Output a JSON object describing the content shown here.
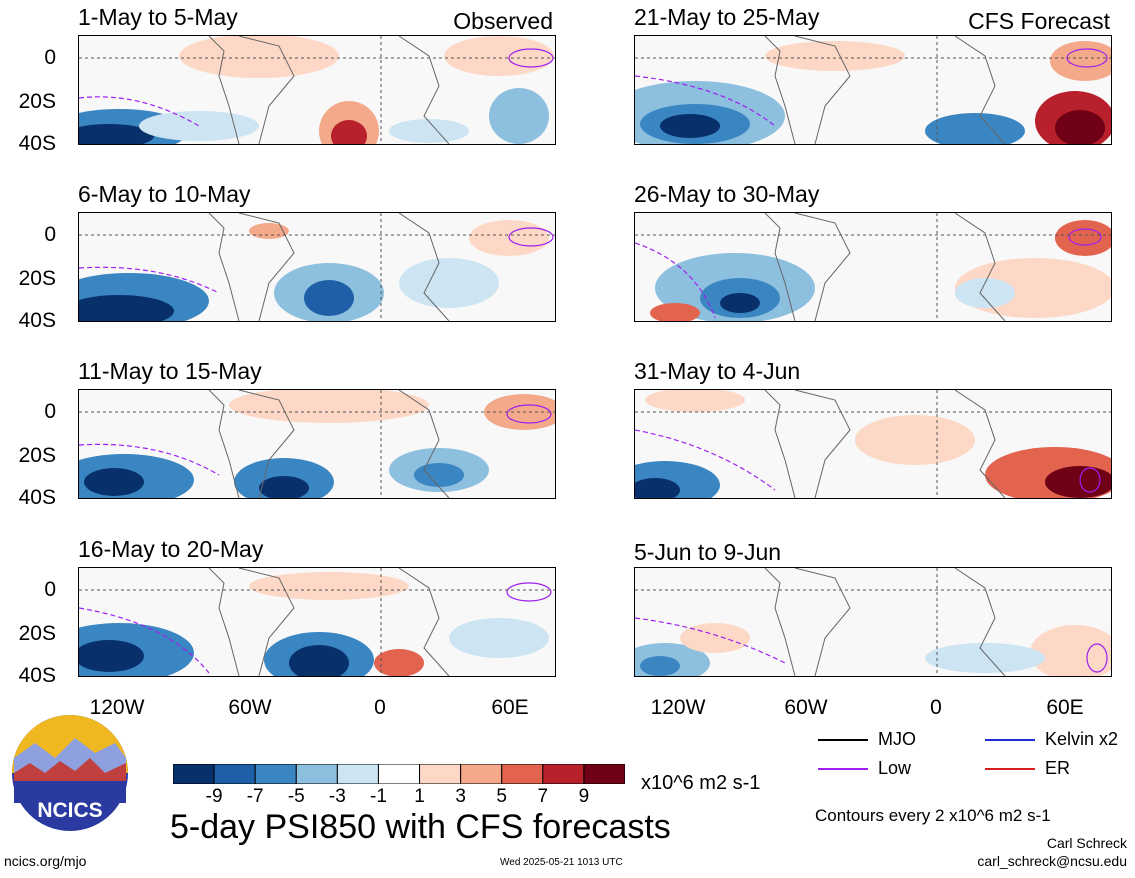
{
  "panels_left": [
    {
      "title": "1-May to 5-May",
      "tag": "Observed"
    },
    {
      "title": "6-May to 10-May",
      "tag": ""
    },
    {
      "title": "11-May to 15-May",
      "tag": ""
    },
    {
      "title": "16-May to 20-May",
      "tag": ""
    }
  ],
  "panels_right": [
    {
      "title": "21-May to 25-May",
      "tag": "CFS Forecast"
    },
    {
      "title": "26-May to 30-May",
      "tag": ""
    },
    {
      "title": "31-May to 4-Jun",
      "tag": ""
    },
    {
      "title": "5-Jun to 9-Jun",
      "tag": ""
    }
  ],
  "y_ticks": [
    "0",
    "20S",
    "40S"
  ],
  "x_ticks": [
    "120W",
    "60W",
    "0",
    "60E"
  ],
  "colorbar": {
    "colors": [
      "#08306b",
      "#1f5fa8",
      "#3a86c3",
      "#8dbfdf",
      "#cde4f2",
      "#ffffff",
      "#fdd8c6",
      "#f4a98a",
      "#e2644e",
      "#b8202b",
      "#6f0016"
    ],
    "tick_labels": [
      "-9",
      "-7",
      "-5",
      "-3",
      "-1",
      "1",
      "3",
      "5",
      "7",
      "9"
    ],
    "units": "x10^6 m2 s-1"
  },
  "legend": {
    "mjo": "MJO",
    "kelvin": "Kelvin x2",
    "low": "Low",
    "er": "ER",
    "mjo_color": "#000000",
    "kelvin_color": "#1f2fd6",
    "low_color": "#a020f0",
    "er_color": "#d62020"
  },
  "contour_note": "Contours every 2 x10^6 m2 s-1",
  "main_title": "5-day PSI850 with CFS forecasts",
  "logo_text": "NCICS",
  "footer": {
    "left": "ncics.org/mjo",
    "center": "Wed 2025-05-21 1013 UTC",
    "author": "Carl Schreck",
    "email": "carl_schreck@ncsu.edu"
  }
}
